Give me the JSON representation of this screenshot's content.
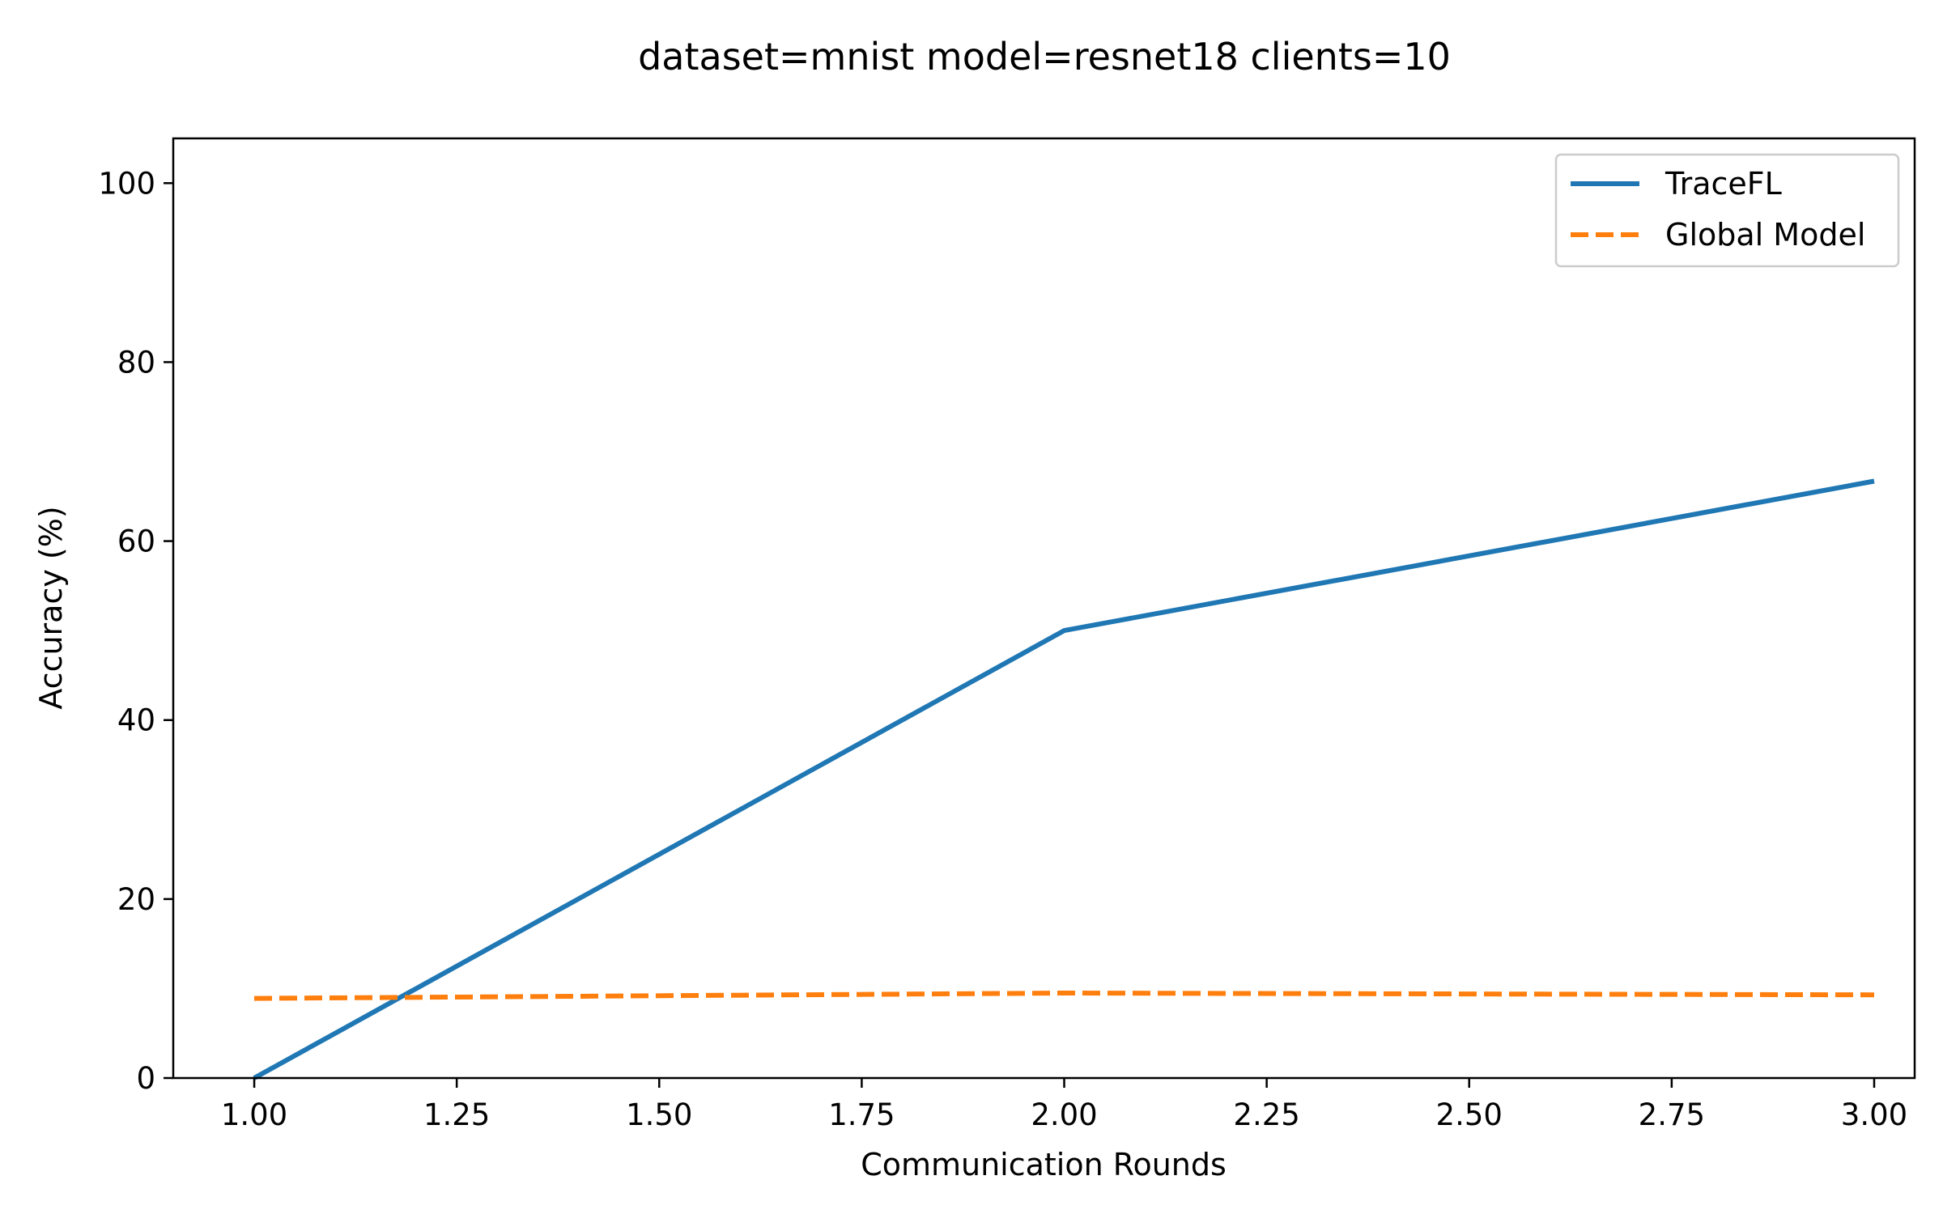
{
  "chart_data": {
    "type": "line",
    "title": "dataset=mnist model=resnet18 clients=10",
    "xlabel": "Communication Rounds",
    "ylabel": "Accuracy (%)",
    "xlim": [
      0.9,
      3.05
    ],
    "ylim": [
      0,
      105
    ],
    "x_ticks": [
      1.0,
      1.25,
      1.5,
      1.75,
      2.0,
      2.25,
      2.5,
      2.75,
      3.0
    ],
    "x_tick_labels": [
      "1.00",
      "1.25",
      "1.50",
      "1.75",
      "2.00",
      "2.25",
      "2.50",
      "2.75",
      "3.00"
    ],
    "y_ticks": [
      0,
      20,
      40,
      60,
      80,
      100
    ],
    "y_tick_labels": [
      "0",
      "20",
      "40",
      "60",
      "80",
      "100"
    ],
    "grid": false,
    "legend_position": "top-right",
    "series": [
      {
        "name": "TraceFL",
        "x": [
          1,
          2,
          3
        ],
        "values": [
          0.0,
          50.0,
          66.7
        ],
        "color": "#1f77b4",
        "style": "solid"
      },
      {
        "name": "Global Model",
        "x": [
          1,
          2,
          3
        ],
        "values": [
          8.9,
          9.5,
          9.3
        ],
        "color": "#ff7f0e",
        "style": "dashed"
      }
    ]
  }
}
